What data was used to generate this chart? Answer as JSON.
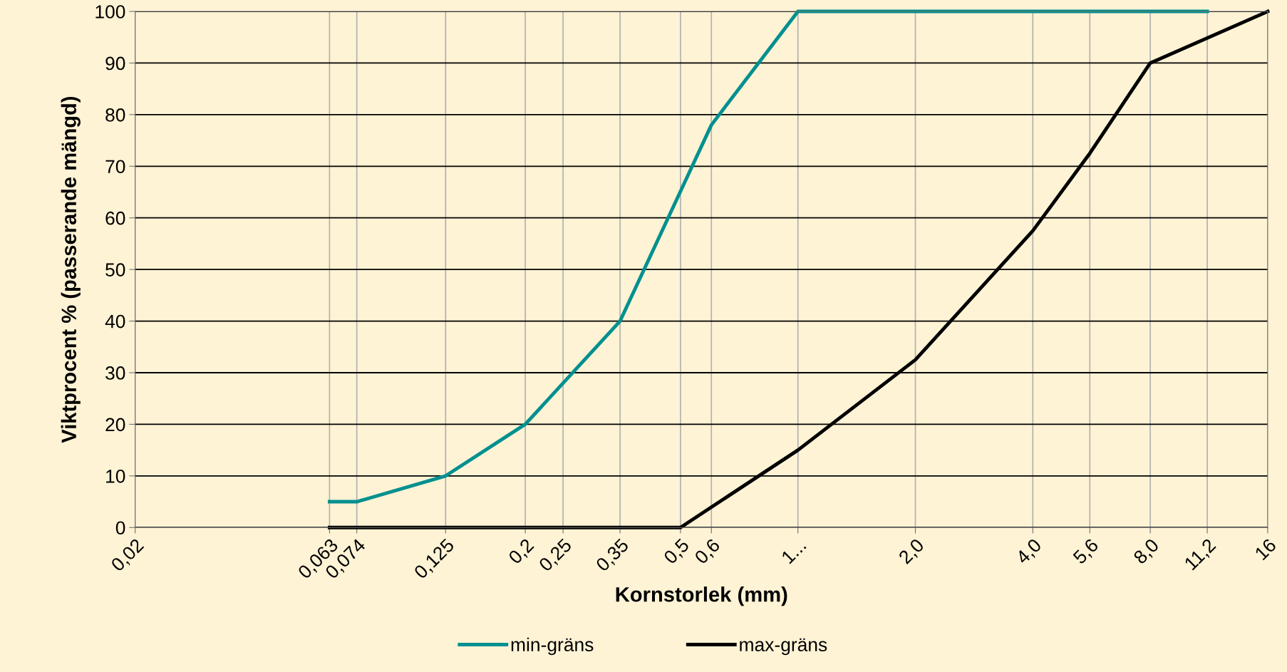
{
  "chart_data": {
    "type": "line",
    "xlabel": "Kornstorlek (mm)",
    "ylabel": "Viktprocent % (passerande mängd)",
    "log": "x",
    "xlim": [
      0.02,
      16
    ],
    "ylim": [
      0,
      100
    ],
    "xticks": [
      {
        "value": 0.02,
        "label": "0,02"
      },
      {
        "value": 0.063,
        "label": "0,063"
      },
      {
        "value": 0.074,
        "label": "0,074"
      },
      {
        "value": 0.125,
        "label": "0,125"
      },
      {
        "value": 0.2,
        "label": "0,2"
      },
      {
        "value": 0.25,
        "label": "0,25"
      },
      {
        "value": 0.35,
        "label": "0,35"
      },
      {
        "value": 0.5,
        "label": "0,5"
      },
      {
        "value": 0.6,
        "label": "0,6"
      },
      {
        "value": 1,
        "label": "1..."
      },
      {
        "value": 2,
        "label": "2,0"
      },
      {
        "value": 4,
        "label": "4,0"
      },
      {
        "value": 5.6,
        "label": "5,6"
      },
      {
        "value": 8,
        "label": "8,0"
      },
      {
        "value": 11.2,
        "label": "11,2"
      },
      {
        "value": 16,
        "label": "16"
      }
    ],
    "yticks": [
      0,
      10,
      20,
      30,
      40,
      50,
      60,
      70,
      80,
      90,
      100
    ],
    "grid": true,
    "legend": "bottom",
    "marker": "none",
    "line_style": "solid",
    "series": [
      {
        "name": "min-gräns",
        "color": "#00908f",
        "x": [
          0.063,
          0.074,
          0.125,
          0.2,
          0.35,
          0.6,
          1,
          11.2
        ],
        "values": [
          5,
          5,
          10,
          20,
          40,
          78,
          100,
          100
        ]
      },
      {
        "name": "max-gräns",
        "color": "#000000",
        "x": [
          0.063,
          0.5,
          1,
          2,
          4,
          5.6,
          8,
          16
        ],
        "values": [
          0,
          0,
          15,
          32.5,
          57.5,
          72.5,
          90,
          100
        ]
      }
    ]
  }
}
